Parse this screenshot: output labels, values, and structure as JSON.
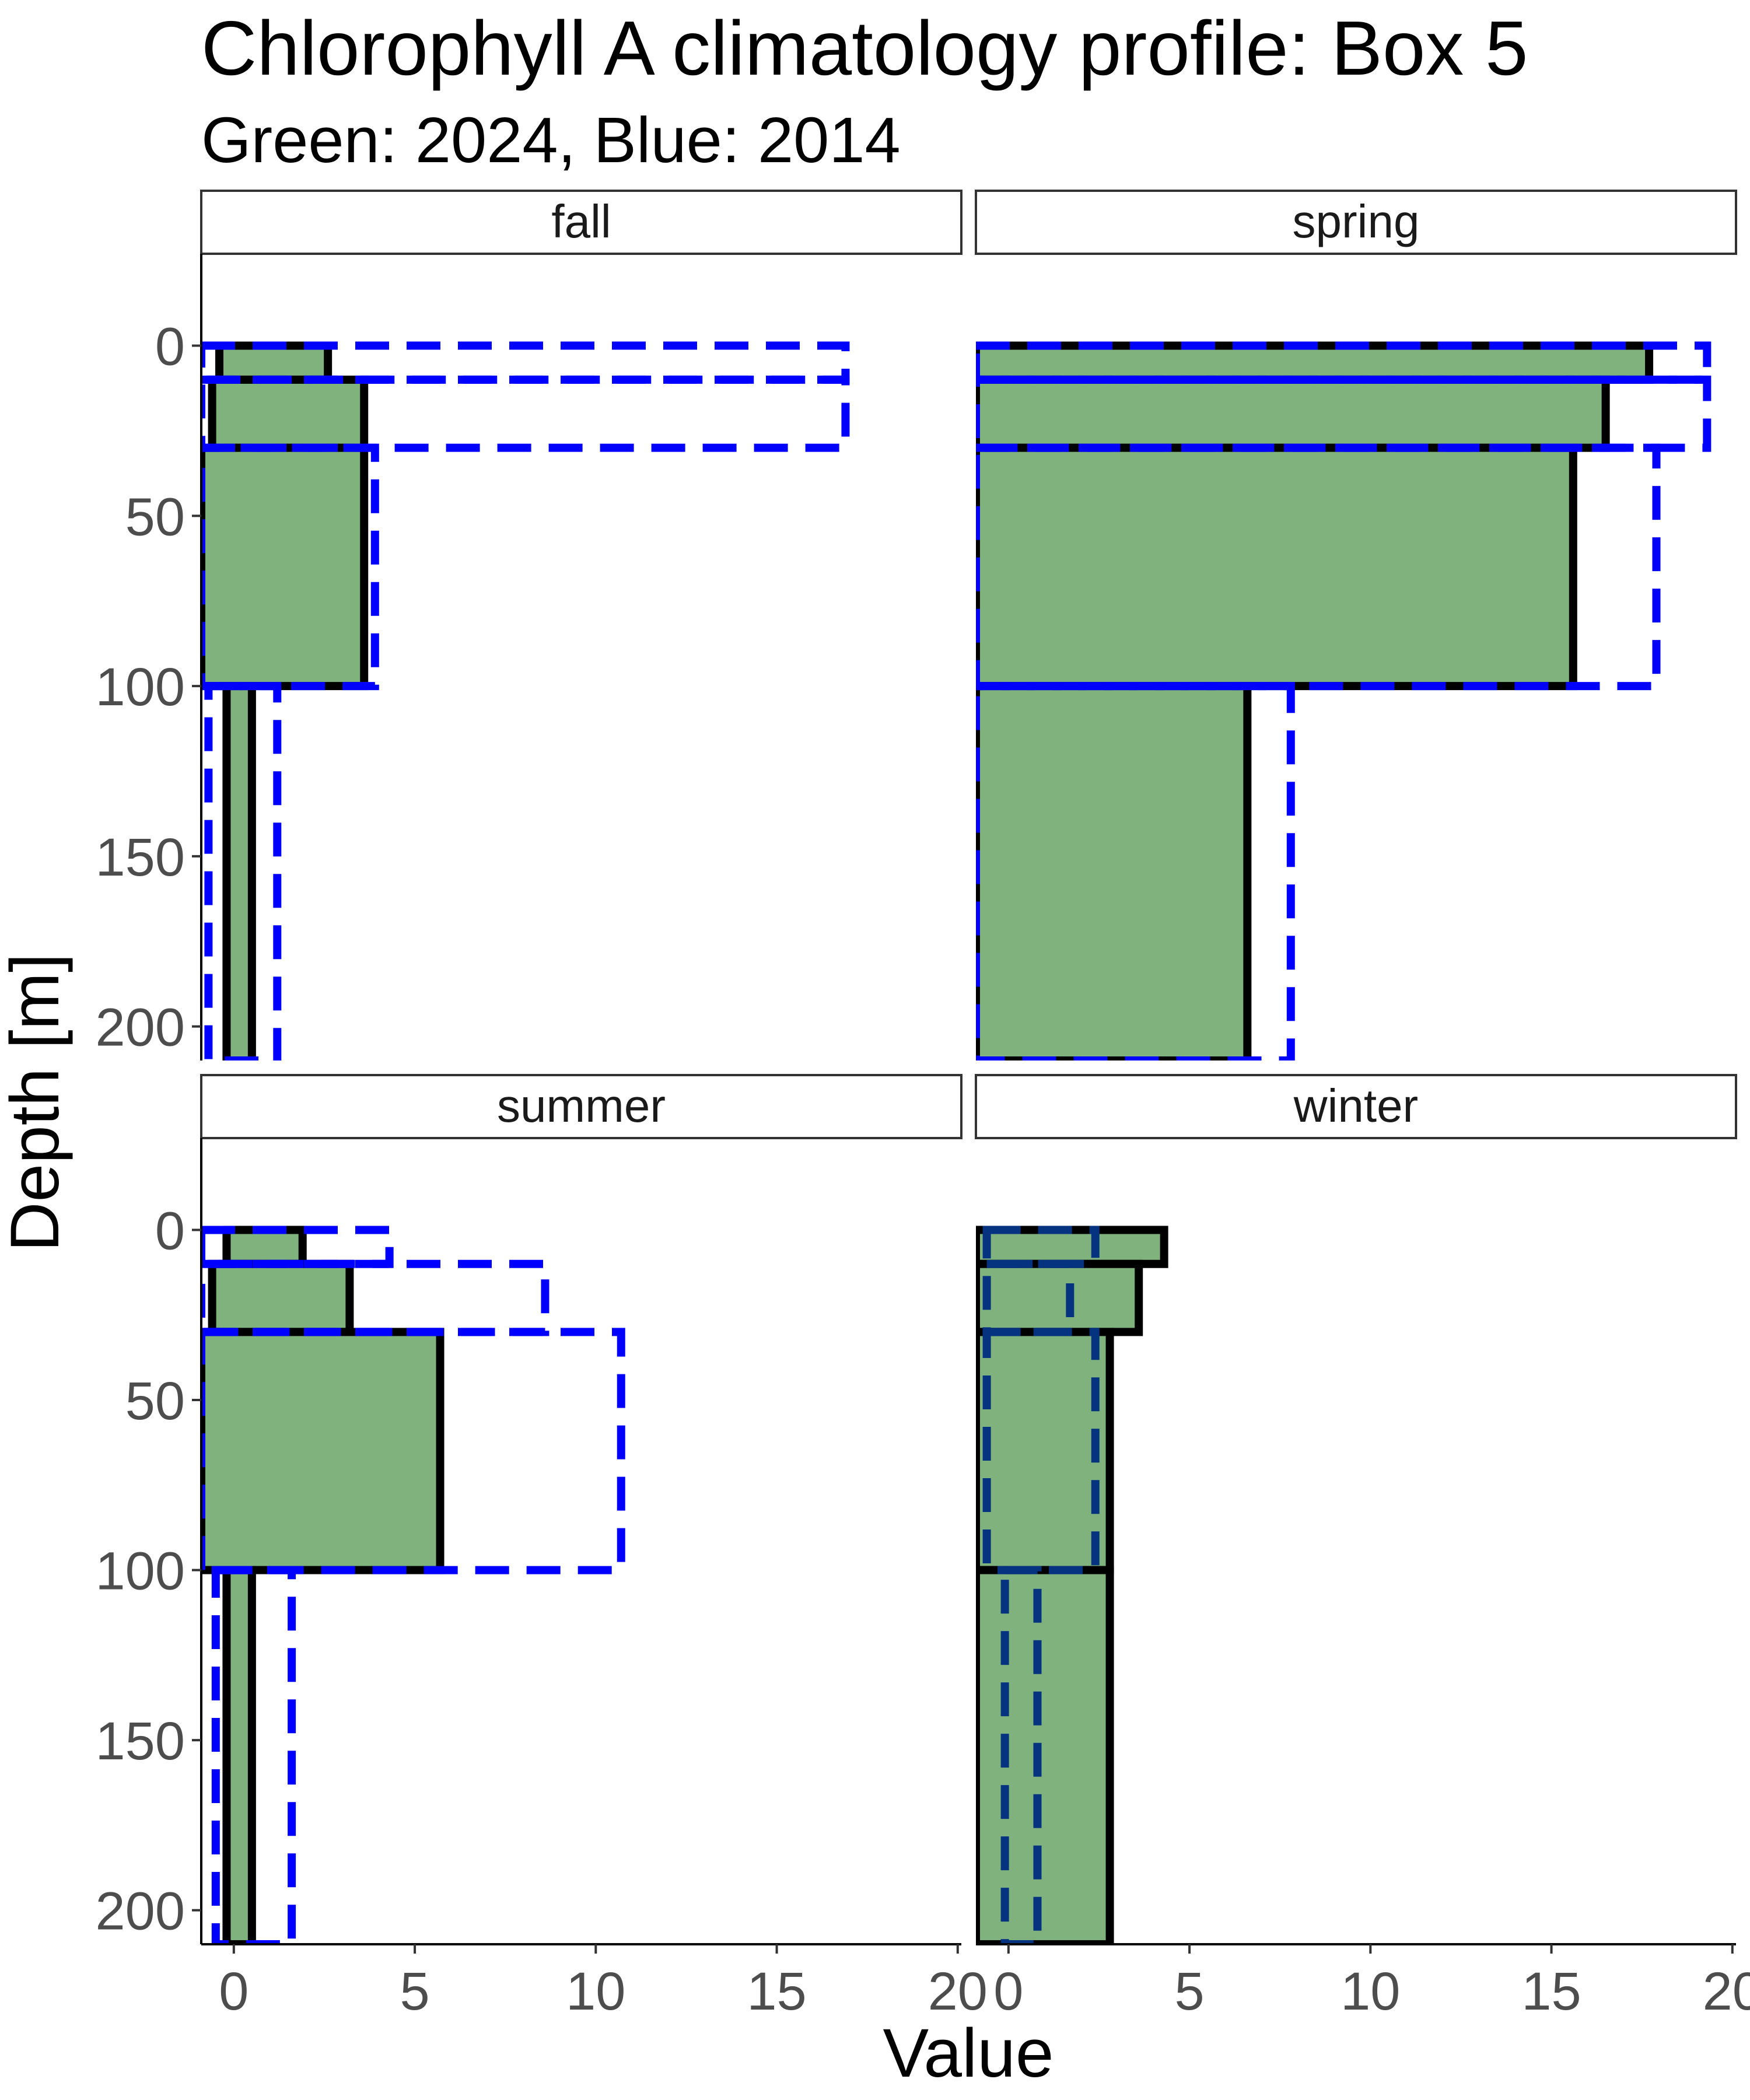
{
  "chart_data": {
    "type": "bar",
    "title": "Chlorophyll A climatology profile: Box 5",
    "subtitle": "Green: 2024, Blue: 2014",
    "xlabel": "Value",
    "ylabel": "Depth [m]",
    "xlim": [
      -0.9,
      20.1
    ],
    "ylim": [
      210,
      -27
    ],
    "x_ticks": [
      0,
      5,
      10,
      15,
      20
    ],
    "y_ticks": [
      0,
      50,
      100,
      150,
      200
    ],
    "grid": false,
    "legend": "none",
    "colors": {
      "fill_2024": "#80b27e",
      "outline_2024": "#000000",
      "line_2014": "#0000ff",
      "line_2014_winter": "#053380"
    },
    "depth_layers": [
      [
        0,
        10
      ],
      [
        10,
        30
      ],
      [
        30,
        100
      ],
      [
        100,
        210
      ]
    ],
    "panels": [
      {
        "name": "fall",
        "series": [
          {
            "year": "2024",
            "style": "bar",
            "values": [
              [
                -0.4,
                2.6
              ],
              [
                -0.6,
                3.6
              ],
              [
                -0.9,
                3.6
              ],
              [
                -0.2,
                0.5
              ]
            ]
          },
          {
            "year": "2014",
            "style": "dashed",
            "values": [
              [
                -0.9,
                16.9
              ],
              [
                -0.9,
                16.9
              ],
              [
                -0.9,
                3.9
              ],
              [
                -0.7,
                1.2
              ]
            ]
          }
        ]
      },
      {
        "name": "spring",
        "series": [
          {
            "year": "2024",
            "style": "bar",
            "values": [
              [
                -0.9,
                17.7
              ],
              [
                -0.9,
                16.5
              ],
              [
                -0.9,
                15.6
              ],
              [
                -0.9,
                6.6
              ]
            ]
          },
          {
            "year": "2014",
            "style": "dashed",
            "values": [
              [
                -0.9,
                19.3
              ],
              [
                -0.9,
                19.3
              ],
              [
                -0.9,
                17.9
              ],
              [
                -0.9,
                7.8
              ]
            ]
          }
        ]
      },
      {
        "name": "summer",
        "series": [
          {
            "year": "2024",
            "style": "bar",
            "values": [
              [
                -0.2,
                1.9
              ],
              [
                -0.6,
                3.2
              ],
              [
                -0.9,
                5.7
              ],
              [
                -0.2,
                0.5
              ]
            ]
          },
          {
            "year": "2014",
            "style": "dashed",
            "values": [
              [
                -0.9,
                4.3
              ],
              [
                -0.9,
                8.6
              ],
              [
                -0.9,
                10.7
              ],
              [
                -0.5,
                1.6
              ]
            ]
          }
        ]
      },
      {
        "name": "winter",
        "series": [
          {
            "year": "2024",
            "style": "bar",
            "values": [
              [
                -0.9,
                4.3
              ],
              [
                -0.9,
                3.6
              ],
              [
                -0.9,
                2.8
              ],
              [
                -0.9,
                2.8
              ]
            ]
          },
          {
            "year": "2014",
            "style": "dashed",
            "values": [
              [
                -0.6,
                2.4
              ],
              [
                -0.6,
                1.7
              ],
              [
                -0.6,
                2.4
              ],
              [
                -0.1,
                0.8
              ]
            ]
          }
        ]
      }
    ]
  }
}
